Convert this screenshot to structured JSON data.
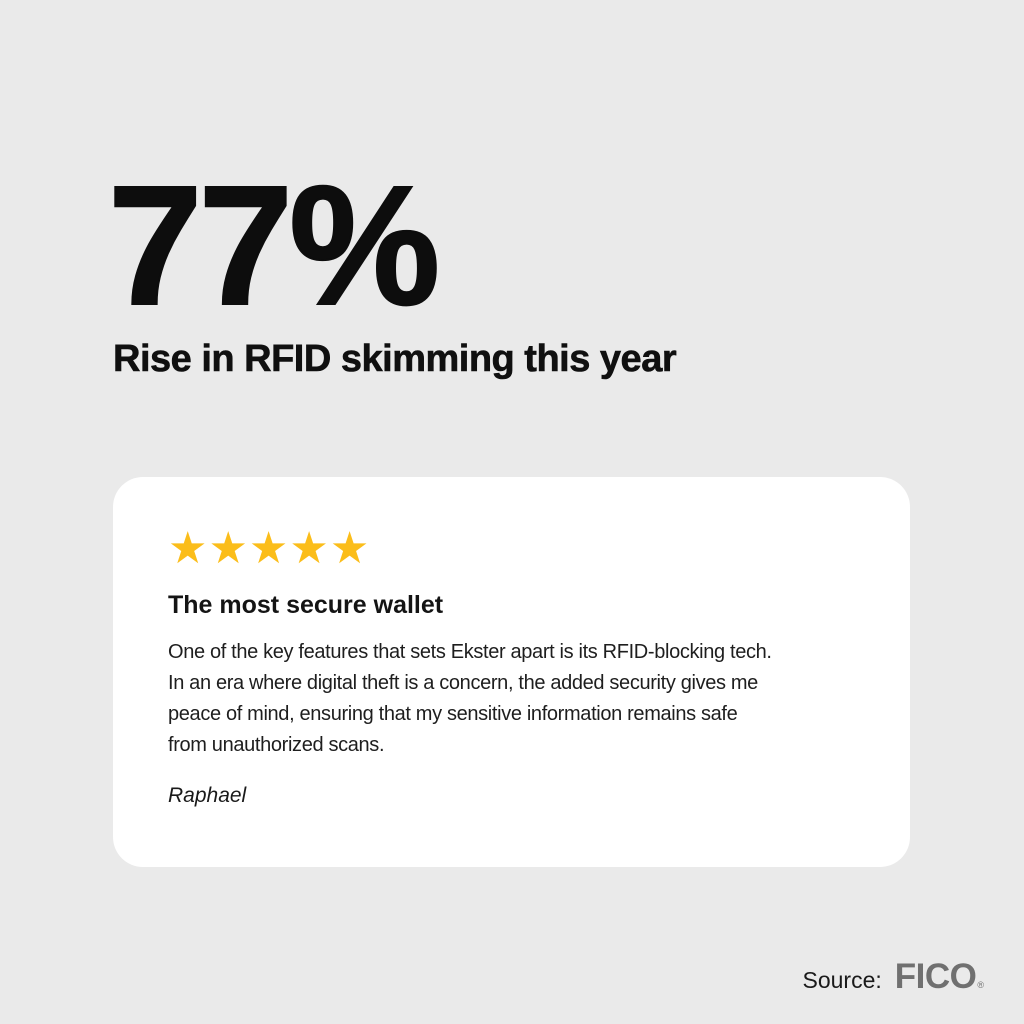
{
  "page": {
    "background_color": "#EAEAEA",
    "card_color": "#FFFFFF"
  },
  "stat": {
    "value": "77%",
    "subtitle": "Rise in RFID skimming this year"
  },
  "review_card": {
    "rating": {
      "stars_count": 5,
      "star_icon": "★",
      "star_color": "#FBBD1A"
    },
    "title": "The most secure wallet",
    "body_lines": [
      "One of the key features that sets Ekster apart is its RFID-blocking tech.",
      "In an era where digital theft is a concern, the added security gives me",
      "peace of mind, ensuring that my sensitive information remains safe",
      "from unauthorized scans."
    ],
    "author": "Raphael"
  },
  "source": {
    "label": "Source:",
    "brand": "FICO",
    "registered_mark": "®",
    "brand_color": "#707070"
  }
}
